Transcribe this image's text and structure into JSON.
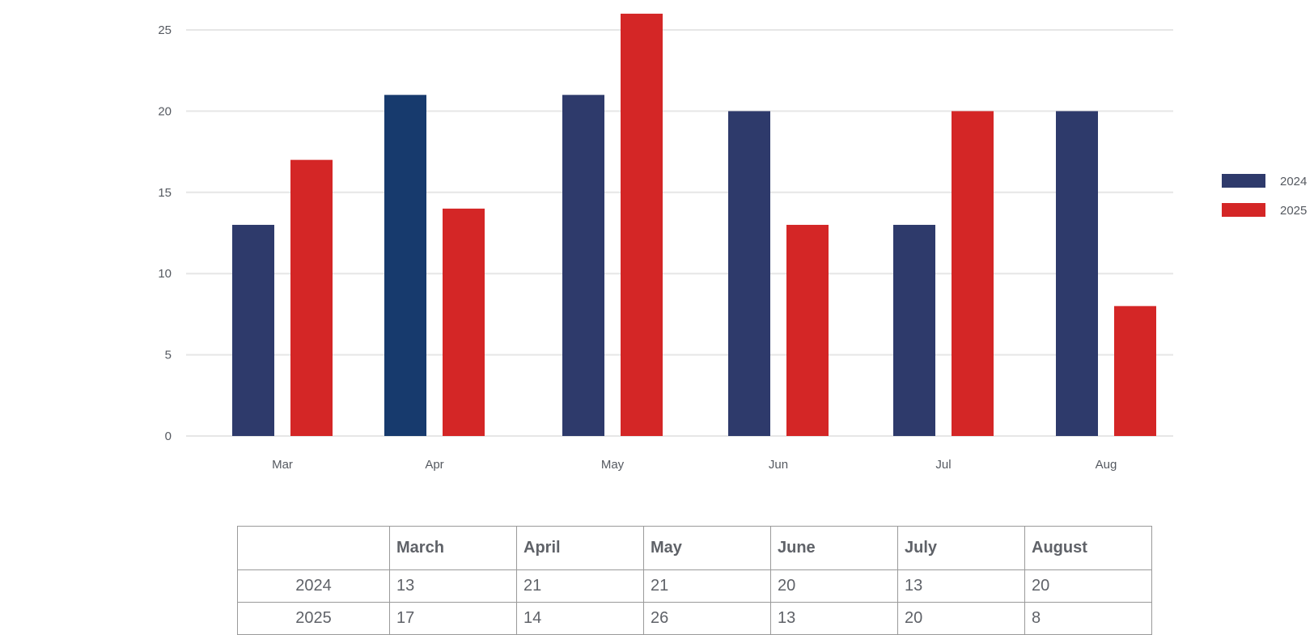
{
  "colors": {
    "series_2024": "#2e3a6b",
    "series_2024_highlight": "#173a6d",
    "series_2025": "#d42626",
    "grid": "#e6e6e6",
    "text": "#555960"
  },
  "chart_data": {
    "type": "bar",
    "categories": [
      "Mar",
      "Apr",
      "May",
      "Jun",
      "Jul",
      "Aug"
    ],
    "series": [
      {
        "name": "2024",
        "values": [
          13,
          21,
          21,
          20,
          13,
          20
        ]
      },
      {
        "name": "2025",
        "values": [
          17,
          14,
          26,
          13,
          20,
          8
        ]
      }
    ],
    "ylim": [
      0,
      25
    ],
    "yticks": [
      0,
      5,
      10,
      15,
      20,
      25
    ],
    "grid": true,
    "legend": "right"
  },
  "table": {
    "headers": [
      "",
      "March",
      "April",
      "May",
      "June",
      "July",
      "August"
    ],
    "rows": [
      {
        "label": "2024",
        "cells": [
          "13",
          "21",
          "21",
          "20",
          "13",
          "20"
        ]
      },
      {
        "label": "2025",
        "cells": [
          "17",
          "14",
          "26",
          "13",
          "20",
          "8"
        ]
      }
    ]
  }
}
